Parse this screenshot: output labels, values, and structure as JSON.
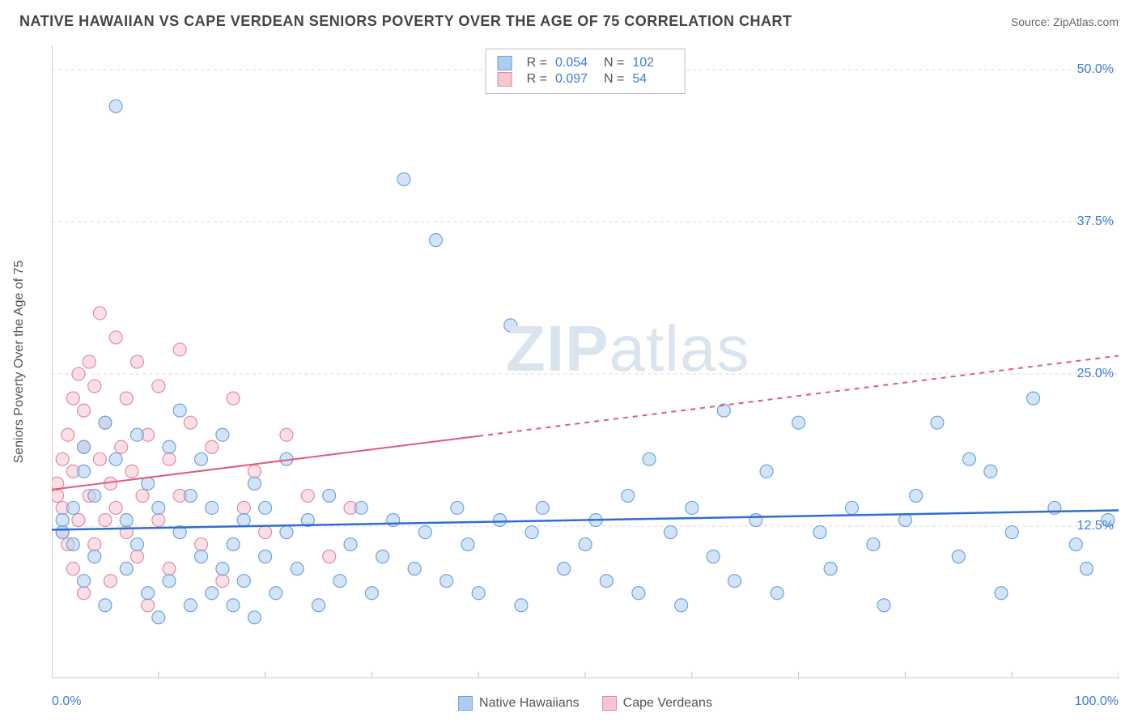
{
  "header": {
    "title": "NATIVE HAWAIIAN VS CAPE VERDEAN SENIORS POVERTY OVER THE AGE OF 75 CORRELATION CHART",
    "source_prefix": "Source: ",
    "source_name": "ZipAtlas.com"
  },
  "watermark": {
    "bold": "ZIP",
    "rest": "atlas"
  },
  "chart": {
    "type": "scatter",
    "ylabel": "Seniors Poverty Over the Age of 75",
    "xlim": [
      0,
      100
    ],
    "ylim": [
      0,
      52
    ],
    "x_axis": {
      "min_label": "0.0%",
      "max_label": "100.0%",
      "tick_step": 10
    },
    "y_axis": {
      "ticks": [
        12.5,
        25.0,
        37.5,
        50.0
      ],
      "tick_labels": [
        "12.5%",
        "25.0%",
        "37.5%",
        "50.0%"
      ]
    },
    "grid_color": "#d9d9d9",
    "axis_color": "#bfbfbf",
    "background_color": "#ffffff",
    "marker_radius": 8,
    "marker_stroke_width": 1.2,
    "series": {
      "native_hawaiians": {
        "label": "Native Hawaiians",
        "fill": "#aecdf0",
        "stroke": "#6fa3dd",
        "fill_opacity": 0.55,
        "stats": {
          "R": "0.054",
          "N": "102"
        },
        "trend": {
          "y_at_x0": 12.2,
          "y_at_x100": 13.8,
          "stroke": "#2f6fd0",
          "width": 2.5,
          "solid_until_x": 100
        },
        "points": [
          [
            1,
            12
          ],
          [
            1,
            13
          ],
          [
            2,
            14
          ],
          [
            2,
            11
          ],
          [
            3,
            17
          ],
          [
            3,
            19
          ],
          [
            3,
            8
          ],
          [
            4,
            15
          ],
          [
            4,
            10
          ],
          [
            5,
            21
          ],
          [
            5,
            6
          ],
          [
            6,
            18
          ],
          [
            6,
            47
          ],
          [
            7,
            13
          ],
          [
            7,
            9
          ],
          [
            8,
            20
          ],
          [
            8,
            11
          ],
          [
            9,
            7
          ],
          [
            9,
            16
          ],
          [
            10,
            14
          ],
          [
            10,
            5
          ],
          [
            11,
            19
          ],
          [
            11,
            8
          ],
          [
            12,
            12
          ],
          [
            12,
            22
          ],
          [
            13,
            6
          ],
          [
            13,
            15
          ],
          [
            14,
            10
          ],
          [
            14,
            18
          ],
          [
            15,
            7
          ],
          [
            15,
            14
          ],
          [
            16,
            9
          ],
          [
            16,
            20
          ],
          [
            17,
            11
          ],
          [
            17,
            6
          ],
          [
            18,
            13
          ],
          [
            18,
            8
          ],
          [
            19,
            16
          ],
          [
            19,
            5
          ],
          [
            20,
            10
          ],
          [
            20,
            14
          ],
          [
            21,
            7
          ],
          [
            22,
            12
          ],
          [
            22,
            18
          ],
          [
            23,
            9
          ],
          [
            24,
            13
          ],
          [
            25,
            6
          ],
          [
            26,
            15
          ],
          [
            27,
            8
          ],
          [
            28,
            11
          ],
          [
            29,
            14
          ],
          [
            30,
            7
          ],
          [
            31,
            10
          ],
          [
            32,
            13
          ],
          [
            33,
            41
          ],
          [
            34,
            9
          ],
          [
            35,
            12
          ],
          [
            36,
            36
          ],
          [
            37,
            8
          ],
          [
            38,
            14
          ],
          [
            39,
            11
          ],
          [
            40,
            7
          ],
          [
            42,
            13
          ],
          [
            43,
            29
          ],
          [
            44,
            6
          ],
          [
            45,
            12
          ],
          [
            46,
            14
          ],
          [
            48,
            9
          ],
          [
            50,
            11
          ],
          [
            51,
            13
          ],
          [
            52,
            8
          ],
          [
            54,
            15
          ],
          [
            55,
            7
          ],
          [
            56,
            18
          ],
          [
            58,
            12
          ],
          [
            59,
            6
          ],
          [
            60,
            14
          ],
          [
            62,
            10
          ],
          [
            63,
            22
          ],
          [
            64,
            8
          ],
          [
            66,
            13
          ],
          [
            67,
            17
          ],
          [
            68,
            7
          ],
          [
            70,
            21
          ],
          [
            72,
            12
          ],
          [
            73,
            9
          ],
          [
            75,
            14
          ],
          [
            77,
            11
          ],
          [
            78,
            6
          ],
          [
            80,
            13
          ],
          [
            81,
            15
          ],
          [
            83,
            21
          ],
          [
            85,
            10
          ],
          [
            86,
            18
          ],
          [
            88,
            17
          ],
          [
            89,
            7
          ],
          [
            90,
            12
          ],
          [
            92,
            23
          ],
          [
            94,
            14
          ],
          [
            96,
            11
          ],
          [
            97,
            9
          ],
          [
            99,
            13
          ]
        ]
      },
      "cape_verdeans": {
        "label": "Cape Verdeans",
        "fill": "#f6c6d1",
        "stroke": "#e48aa1",
        "fill_opacity": 0.55,
        "stats": {
          "R": "0.097",
          "N": "54"
        },
        "trend": {
          "y_at_x0": 15.5,
          "y_at_x100": 26.5,
          "stroke": "#e05a7c",
          "width": 2,
          "solid_until_x": 40
        },
        "points": [
          [
            0.5,
            15
          ],
          [
            0.5,
            16
          ],
          [
            1,
            12
          ],
          [
            1,
            18
          ],
          [
            1,
            14
          ],
          [
            1.5,
            20
          ],
          [
            1.5,
            11
          ],
          [
            2,
            23
          ],
          [
            2,
            9
          ],
          [
            2,
            17
          ],
          [
            2.5,
            25
          ],
          [
            2.5,
            13
          ],
          [
            3,
            19
          ],
          [
            3,
            7
          ],
          [
            3,
            22
          ],
          [
            3.5,
            15
          ],
          [
            3.5,
            26
          ],
          [
            4,
            11
          ],
          [
            4,
            24
          ],
          [
            4.5,
            18
          ],
          [
            4.5,
            30
          ],
          [
            5,
            13
          ],
          [
            5,
            21
          ],
          [
            5.5,
            16
          ],
          [
            5.5,
            8
          ],
          [
            6,
            28
          ],
          [
            6,
            14
          ],
          [
            6.5,
            19
          ],
          [
            7,
            12
          ],
          [
            7,
            23
          ],
          [
            7.5,
            17
          ],
          [
            8,
            10
          ],
          [
            8,
            26
          ],
          [
            8.5,
            15
          ],
          [
            9,
            20
          ],
          [
            9,
            6
          ],
          [
            10,
            24
          ],
          [
            10,
            13
          ],
          [
            11,
            18
          ],
          [
            11,
            9
          ],
          [
            12,
            27
          ],
          [
            12,
            15
          ],
          [
            13,
            21
          ],
          [
            14,
            11
          ],
          [
            15,
            19
          ],
          [
            16,
            8
          ],
          [
            17,
            23
          ],
          [
            18,
            14
          ],
          [
            19,
            17
          ],
          [
            20,
            12
          ],
          [
            22,
            20
          ],
          [
            24,
            15
          ],
          [
            26,
            10
          ],
          [
            28,
            14
          ]
        ]
      }
    },
    "stats_legend": {
      "r_label": "R =",
      "n_label": "N ="
    }
  }
}
